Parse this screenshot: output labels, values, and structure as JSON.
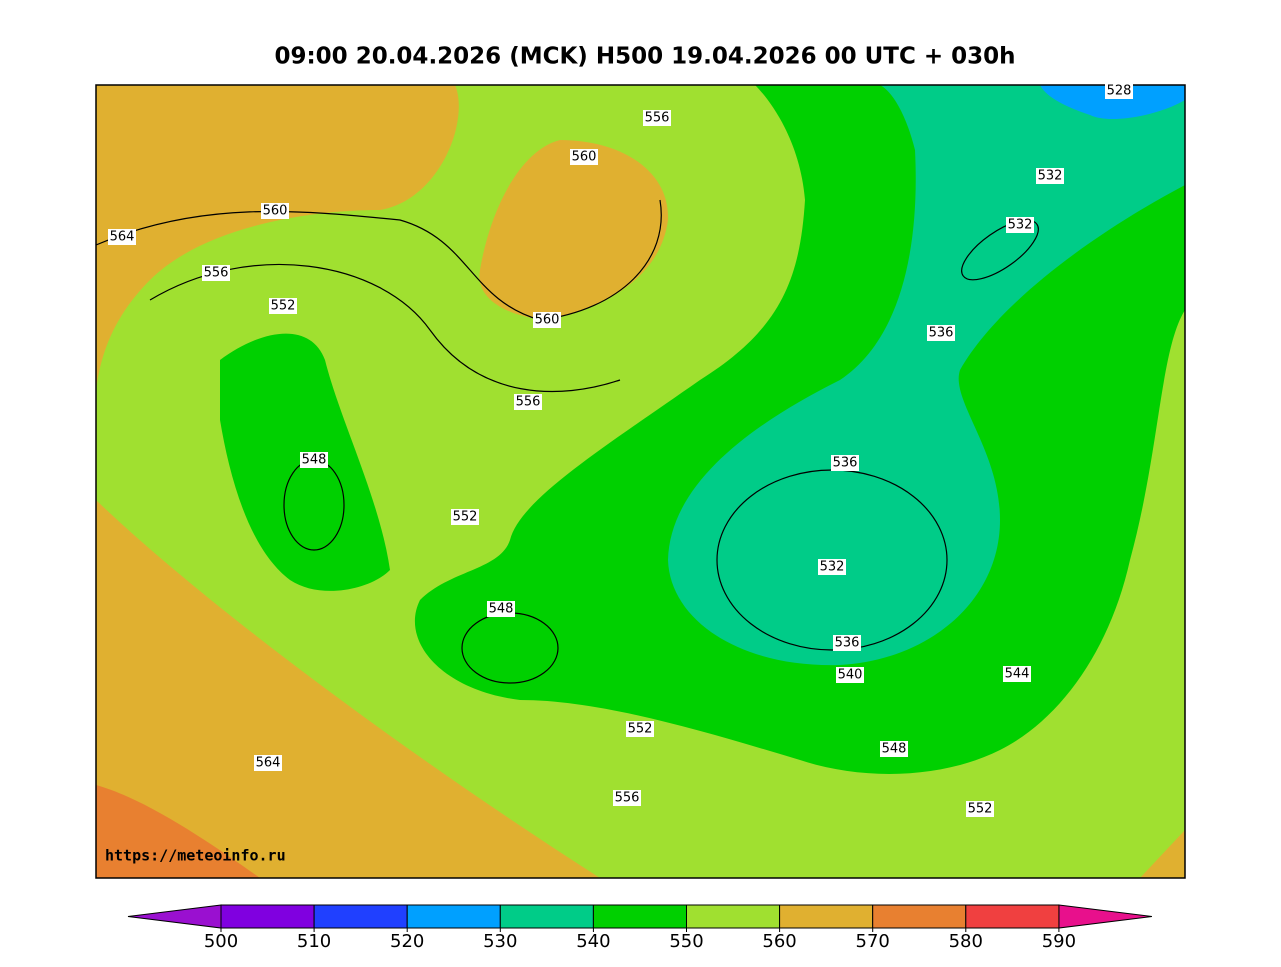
{
  "title": "09:00 20.04.2026 (MCK) H500  19.04.2026 00 UTC + 030h",
  "source": "https://meteoinfo.ru",
  "contour_labels": [
    528,
    556,
    560,
    532,
    560,
    532,
    564,
    556,
    552,
    560,
    536,
    556,
    548,
    536,
    552,
    532,
    548,
    536,
    540,
    544,
    552,
    548,
    564,
    556,
    552
  ],
  "colorbar": {
    "ticks": [
      500,
      510,
      520,
      530,
      540,
      550,
      560,
      570,
      580,
      590
    ],
    "under_color": "#9a10d0",
    "over_color": "#e8108c",
    "colors": [
      "#8000e0",
      "#2040ff",
      "#00a0ff",
      "#00cc88",
      "#00d000",
      "#a0e030",
      "#e0b030",
      "#e88030",
      "#f04040"
    ]
  }
}
